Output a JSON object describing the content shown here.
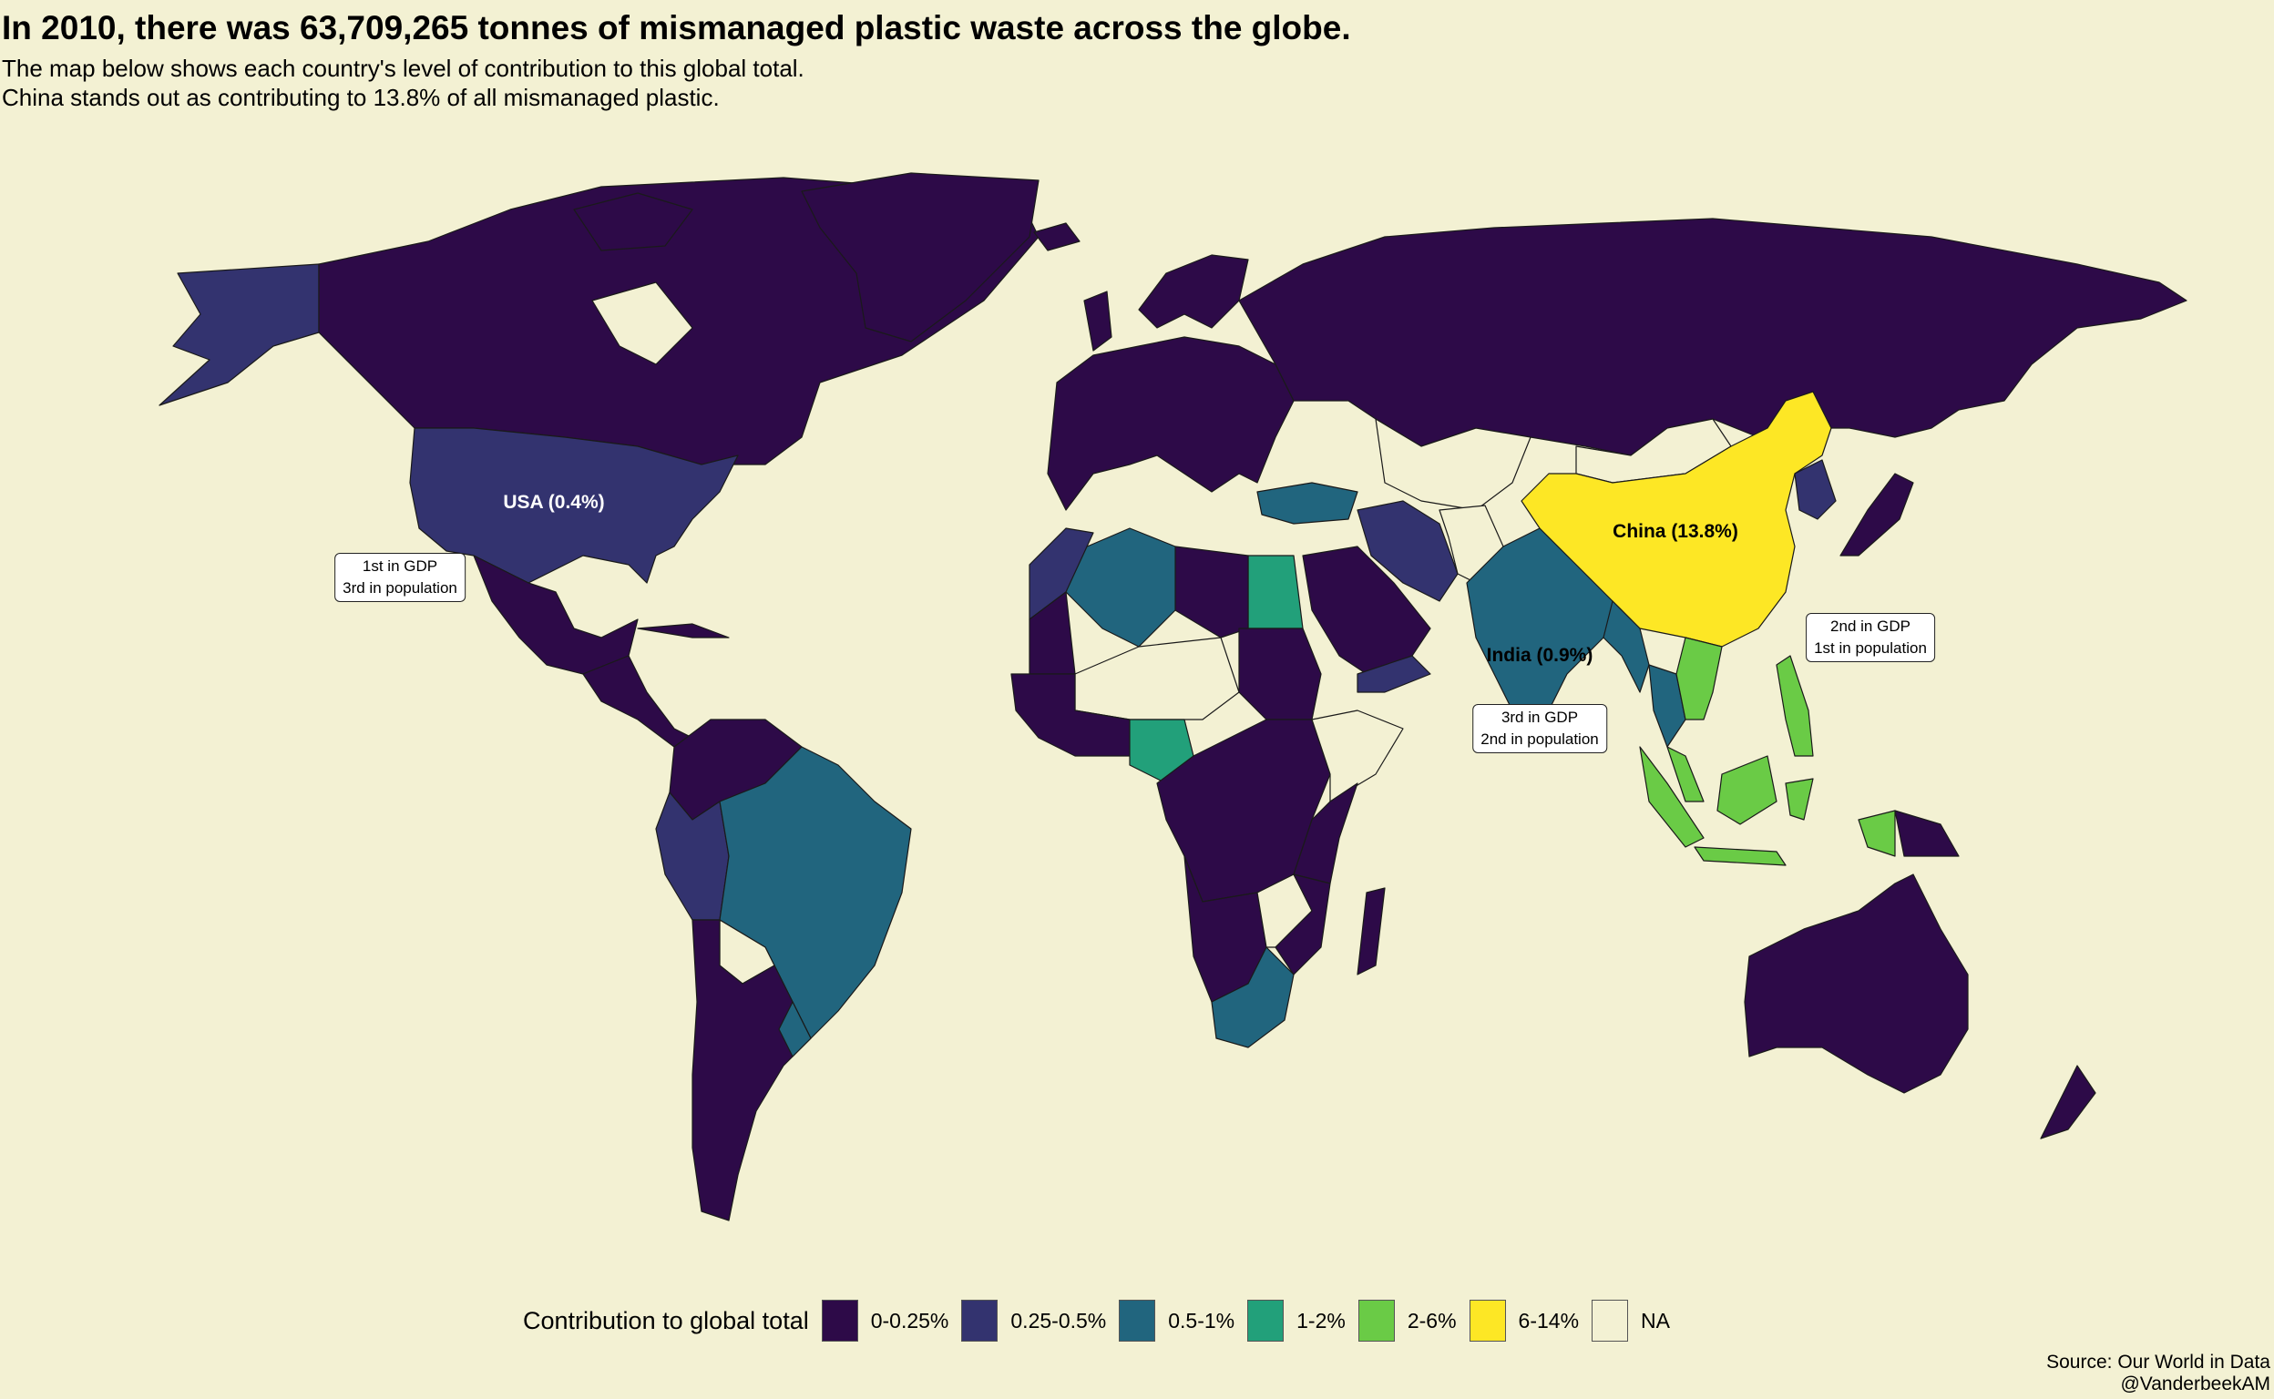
{
  "title": "In 2010, there was 63,709,265 tonnes of mismanaged plastic waste across the globe.",
  "subtitle_line1": "The map below shows each country's level of contribution to this global total.",
  "subtitle_line2": "China stands out as contributing to 13.8% of all mismanaged plastic.",
  "map_labels": {
    "usa": "USA (0.4%)",
    "china": "China (13.8%)",
    "india": "India (0.9%)"
  },
  "annotations": {
    "usa": {
      "line1": "1st in GDP",
      "line2": "3rd in population"
    },
    "china": {
      "line1": "2nd in GDP",
      "line2": "1st in population"
    },
    "india": {
      "line1": "3rd in GDP",
      "line2": "2nd in population"
    }
  },
  "legend": {
    "title": "Contribution to global total",
    "items": [
      {
        "label": "0-0.25%",
        "color": "#2d0a48"
      },
      {
        "label": "0.25-0.5%",
        "color": "#33336f"
      },
      {
        "label": "0.5-1%",
        "color": "#21657e"
      },
      {
        "label": "1-2%",
        "color": "#22a07a"
      },
      {
        "label": "2-6%",
        "color": "#6acb46"
      },
      {
        "label": "6-14%",
        "color": "#fde725"
      },
      {
        "label": "NA",
        "color": "#f3f1d3"
      }
    ]
  },
  "source_line1": "Source: Our World in Data",
  "source_line2": "@VanderbeekAM",
  "colors": {
    "background": "#f3f1d3",
    "c0": "#2d0a48",
    "c1": "#33336f",
    "c2": "#21657e",
    "c3": "#22a07a",
    "c4": "#6acb46",
    "c5": "#fde725"
  }
}
